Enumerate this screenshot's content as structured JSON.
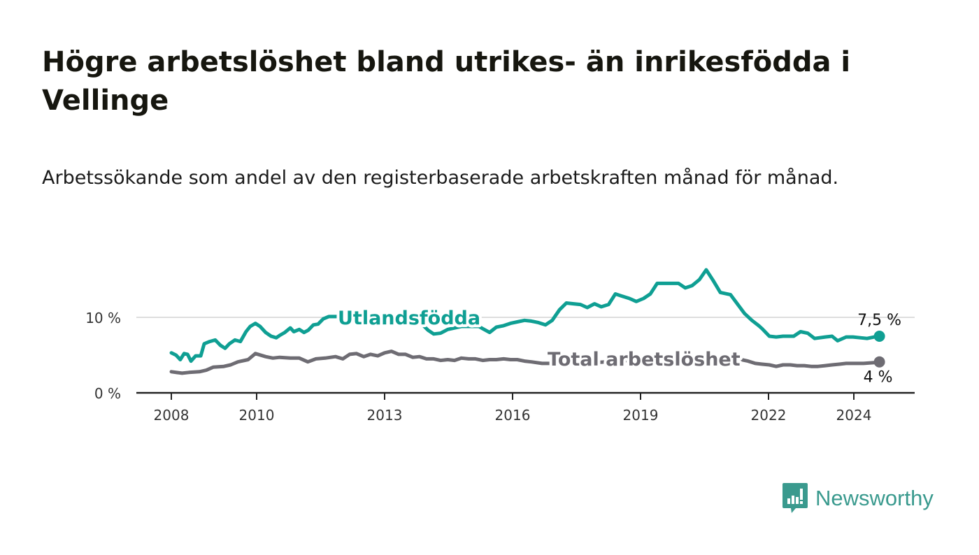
{
  "header": {
    "title": "Högre arbetslöshet bland utrikes- än inrikesfödda i Vellinge",
    "subtitle": "Arbetssökande som andel av den registerbaserade arbetskraften månad för månad."
  },
  "logo": {
    "text": "Newsworthy",
    "icon": "bar-chart-speech-bubble-icon"
  },
  "colors": {
    "foreign_born": "#0f9f93",
    "total": "#6e6c73",
    "grid": "#dddddd",
    "axis": "#222222"
  },
  "chart_data": {
    "type": "line",
    "title": "Högre arbetslöshet bland utrikes- än inrikesfödda i Vellinge",
    "subtitle": "Arbetssökande som andel av den registerbaserade arbetskraften månad för månad.",
    "xlabel": "",
    "ylabel": "",
    "xlim": [
      2007.2,
      2025.5
    ],
    "ylim": [
      0,
      17.5
    ],
    "x_ticks": [
      2008,
      2010,
      2013,
      2016,
      2019,
      2022,
      2024
    ],
    "x_tick_labels": [
      "2008",
      "2010",
      "2013",
      "2016",
      "2019",
      "2022",
      "2024"
    ],
    "y_ticks": [
      0,
      10
    ],
    "y_tick_labels": [
      "0 %",
      "10 %"
    ],
    "grid": "horizontal at 10",
    "legend": "inline labels",
    "series": [
      {
        "name": "Utlandsfödda",
        "end_label": "7,5 %",
        "x": [
          2008.0,
          2008.11,
          2008.21,
          2008.3,
          2008.38,
          2008.46,
          2008.57,
          2008.69,
          2008.77,
          2008.9,
          2009.03,
          2009.15,
          2009.26,
          2009.36,
          2009.49,
          2009.62,
          2009.75,
          2009.85,
          2009.97,
          2010.08,
          2010.21,
          2010.34,
          2010.46,
          2010.54,
          2010.66,
          2010.79,
          2010.87,
          2011.0,
          2011.11,
          2011.21,
          2011.33,
          2011.44,
          2011.56,
          2011.69,
          2011.85,
          2012.5,
          2013.16,
          2013.82,
          2014.02,
          2014.15,
          2014.31,
          2014.48,
          2014.8,
          2015.21,
          2015.3,
          2015.46,
          2015.62,
          2015.79,
          2015.95,
          2016.11,
          2016.28,
          2016.44,
          2016.61,
          2016.77,
          2016.93,
          2017.1,
          2017.26,
          2017.43,
          2017.59,
          2017.75,
          2017.92,
          2018.08,
          2018.25,
          2018.41,
          2018.57,
          2018.74,
          2018.9,
          2019.07,
          2019.23,
          2019.39,
          2019.56,
          2019.72,
          2019.89,
          2020.05,
          2020.21,
          2020.38,
          2020.54,
          2020.7,
          2020.87,
          2021.11,
          2021.28,
          2021.44,
          2021.61,
          2021.77,
          2021.85,
          2022.02,
          2022.18,
          2022.34,
          2022.59,
          2022.75,
          2022.92,
          2023.08,
          2023.33,
          2023.49,
          2023.62,
          2023.82,
          2023.98,
          2024.15,
          2024.31,
          2024.48,
          2024.6
        ],
        "y": [
          5.3,
          5.0,
          4.4,
          5.2,
          5.1,
          4.2,
          4.9,
          4.9,
          6.5,
          6.8,
          7.0,
          6.3,
          5.9,
          6.5,
          7.0,
          6.8,
          8.1,
          8.8,
          9.2,
          8.8,
          8.0,
          7.5,
          7.3,
          7.6,
          8.0,
          8.6,
          8.1,
          8.4,
          8.0,
          8.3,
          9.0,
          9.1,
          9.8,
          10.1,
          10.1,
          10.2,
          10.0,
          9.4,
          8.3,
          7.8,
          7.9,
          8.4,
          8.8,
          8.8,
          8.5,
          8.0,
          8.7,
          8.9,
          9.2,
          9.4,
          9.6,
          9.5,
          9.3,
          9.0,
          9.6,
          11.0,
          11.9,
          11.8,
          11.7,
          11.3,
          11.8,
          11.4,
          11.7,
          13.1,
          12.8,
          12.5,
          12.1,
          12.5,
          13.1,
          14.5,
          14.5,
          14.5,
          14.5,
          13.9,
          14.2,
          15.0,
          16.3,
          14.9,
          13.3,
          13.0,
          11.7,
          10.5,
          9.6,
          8.9,
          8.5,
          7.5,
          7.4,
          7.5,
          7.5,
          8.1,
          7.9,
          7.2,
          7.4,
          7.5,
          6.9,
          7.4,
          7.4,
          7.3,
          7.2,
          7.4,
          7.5
        ]
      },
      {
        "name": "Total arbetslöshet",
        "end_label": "4 %",
        "x": [
          2008.0,
          2008.25,
          2008.41,
          2008.66,
          2008.82,
          2008.98,
          2009.23,
          2009.39,
          2009.56,
          2009.8,
          2009.97,
          2010.21,
          2010.38,
          2010.54,
          2010.79,
          2011.0,
          2011.2,
          2011.39,
          2011.61,
          2011.85,
          2012.02,
          2012.18,
          2012.34,
          2012.51,
          2012.67,
          2012.84,
          2013.0,
          2013.16,
          2013.33,
          2013.49,
          2013.66,
          2013.82,
          2013.98,
          2014.15,
          2014.31,
          2014.48,
          2014.64,
          2014.8,
          2014.97,
          2015.13,
          2015.3,
          2015.46,
          2015.62,
          2015.79,
          2015.95,
          2016.11,
          2016.28,
          2016.44,
          2016.69,
          2017.1,
          2017.92,
          2018.74,
          2019.56,
          2020.38,
          2021.03,
          2021.36,
          2021.52,
          2021.69,
          2021.85,
          2022.02,
          2022.18,
          2022.34,
          2022.51,
          2022.67,
          2022.84,
          2023.0,
          2023.16,
          2023.33,
          2023.49,
          2023.66,
          2023.82,
          2023.98,
          2024.23,
          2024.48,
          2024.6
        ],
        "y": [
          2.8,
          2.6,
          2.7,
          2.8,
          3.0,
          3.4,
          3.5,
          3.7,
          4.1,
          4.4,
          5.2,
          4.8,
          4.6,
          4.7,
          4.6,
          4.6,
          4.1,
          4.5,
          4.6,
          4.8,
          4.5,
          5.1,
          5.2,
          4.8,
          5.1,
          4.9,
          5.3,
          5.5,
          5.1,
          5.1,
          4.7,
          4.8,
          4.5,
          4.5,
          4.3,
          4.4,
          4.3,
          4.6,
          4.5,
          4.5,
          4.3,
          4.4,
          4.4,
          4.5,
          4.4,
          4.4,
          4.2,
          4.1,
          3.9,
          3.9,
          4.0,
          4.3,
          4.6,
          4.7,
          4.6,
          4.4,
          4.2,
          3.9,
          3.8,
          3.7,
          3.5,
          3.7,
          3.7,
          3.6,
          3.6,
          3.5,
          3.5,
          3.6,
          3.7,
          3.8,
          3.9,
          3.9,
          3.9,
          4.0,
          4.1
        ]
      }
    ]
  }
}
